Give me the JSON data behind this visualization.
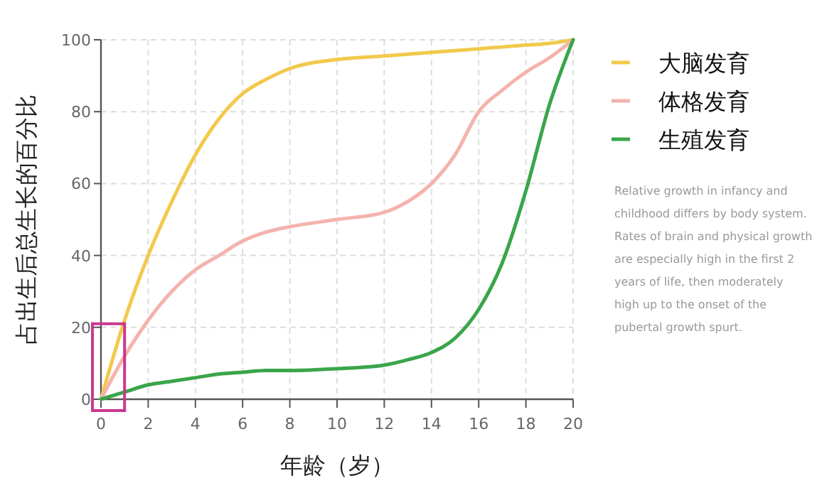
{
  "chart_data": {
    "type": "line",
    "xlabel": "年龄（岁）",
    "ylabel": "占出生后总生长的百分比",
    "x": [
      0,
      1,
      2,
      3,
      4,
      5,
      6,
      7,
      8,
      10,
      12,
      13,
      14,
      15,
      16,
      17,
      18,
      19,
      20
    ],
    "series": [
      {
        "name": "大脑发育",
        "color": "#f2c94c",
        "values": [
          0,
          22,
          40,
          55,
          68,
          78,
          85,
          89,
          92,
          94.5,
          95.5,
          96,
          96.5,
          97,
          97.5,
          98,
          98.5,
          99,
          100
        ]
      },
      {
        "name": "体格发育",
        "color": "#f4b3ad",
        "values": [
          0,
          12,
          22,
          30,
          36,
          40,
          44,
          46.5,
          48,
          50,
          52,
          55,
          60,
          68,
          80,
          86,
          91,
          95,
          100
        ]
      },
      {
        "name": "生殖发育",
        "color": "#3aa54a",
        "values": [
          0,
          2,
          4,
          5,
          6,
          7,
          7.5,
          8,
          8,
          8.5,
          9.5,
          11,
          13,
          17,
          25,
          38,
          58,
          82,
          100
        ]
      }
    ],
    "xlim": [
      0,
      20
    ],
    "xticks": [
      0,
      2,
      4,
      6,
      8,
      10,
      12,
      14,
      16,
      18,
      20
    ],
    "ylim": [
      0,
      100
    ],
    "yticks": [
      0,
      20,
      40,
      60,
      80,
      100
    ],
    "grid": true,
    "legend": "right",
    "marker": "none",
    "line_style": "solid",
    "annotations": [
      "Relative growth in infancy and childhood differs by body system. Rates of brain and physical growth are especially high in the first 2 years of life, then moderately high up to the onset of the pubertal growth spurt."
    ]
  }
}
